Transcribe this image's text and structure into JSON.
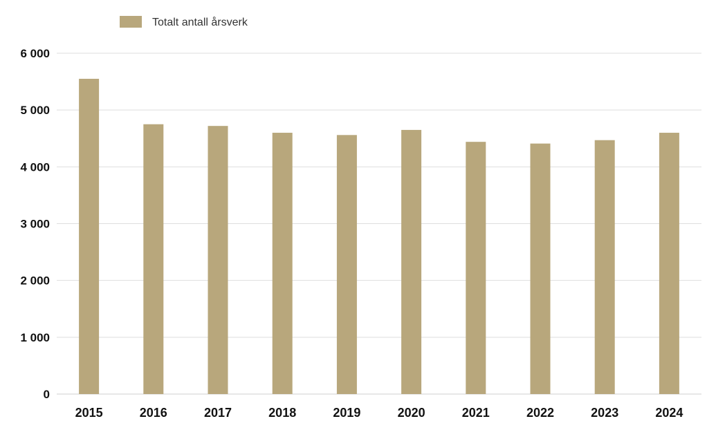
{
  "chart_data": {
    "type": "bar",
    "categories": [
      "2015",
      "2016",
      "2017",
      "2018",
      "2019",
      "2020",
      "2021",
      "2022",
      "2023",
      "2024"
    ],
    "series": [
      {
        "name": "Totalt antall årsverk",
        "values": [
          5550,
          4750,
          4720,
          4600,
          4560,
          4650,
          4440,
          4410,
          4470,
          4600
        ]
      }
    ],
    "y_ticks": [
      "0",
      "1 000",
      "2 000",
      "3 000",
      "4 000",
      "5 000",
      "6 000"
    ],
    "ylim": [
      0,
      6000
    ],
    "grid": true,
    "legend_position": "top-left",
    "bar_color": "#b8a77c"
  }
}
